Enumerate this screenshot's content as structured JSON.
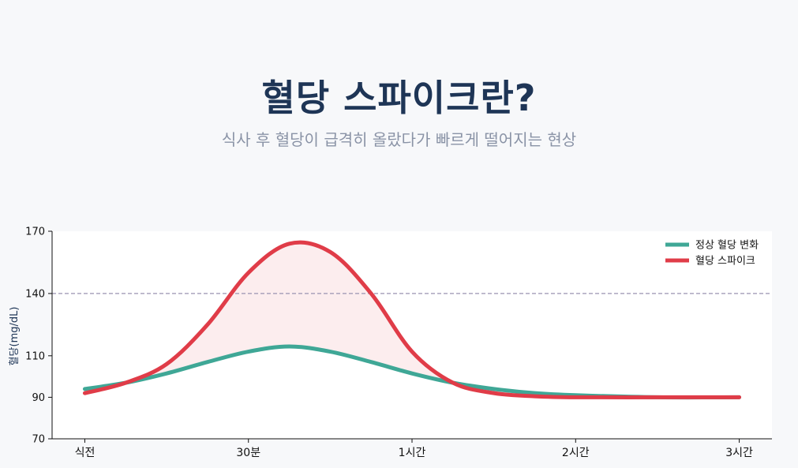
{
  "header": {
    "title": "혈당 스파이크란?",
    "subtitle": "식사 후 혈당이 급격히 올랐다가 빠르게 떨어지는 현상"
  },
  "chart_data": {
    "type": "line",
    "ylabel": "혈당(mg/dL)",
    "xlabel": "",
    "x": [
      0,
      0.25,
      0.5,
      0.75,
      1,
      1.25,
      1.5,
      1.75,
      2,
      2.25,
      2.5,
      2.75,
      3
    ],
    "x_tick_values": [
      0,
      1,
      2,
      3,
      4
    ],
    "x_tick_labels": [
      "식전",
      "30분",
      "1시간",
      "2시간",
      "3시간"
    ],
    "xlim": [
      -0.2,
      4.2
    ],
    "ylim": [
      70,
      170
    ],
    "y_ticks": [
      70,
      90,
      110,
      140,
      170
    ],
    "reference_line": {
      "y": 140,
      "color": "#9a94b0"
    },
    "grid": false,
    "legend_position": "top-right",
    "series": [
      {
        "name": "정상 혈당 변화",
        "color": "#3fa796",
        "points": [
          [
            0,
            94
          ],
          [
            0.25,
            97
          ],
          [
            0.5,
            101.5
          ],
          [
            0.75,
            107
          ],
          [
            1,
            112
          ],
          [
            1.25,
            114.5
          ],
          [
            1.5,
            112
          ],
          [
            1.75,
            107
          ],
          [
            2,
            101.5
          ],
          [
            2.25,
            97
          ],
          [
            2.5,
            94
          ],
          [
            2.75,
            92
          ],
          [
            3,
            91
          ],
          [
            3.5,
            90
          ],
          [
            4,
            90
          ]
        ]
      },
      {
        "name": "혈당 스파이크",
        "color": "#e03c48",
        "points": [
          [
            0,
            92
          ],
          [
            0.25,
            97
          ],
          [
            0.5,
            106
          ],
          [
            0.75,
            125
          ],
          [
            1,
            150
          ],
          [
            1.25,
            164
          ],
          [
            1.5,
            160
          ],
          [
            1.75,
            140
          ],
          [
            2,
            112
          ],
          [
            2.25,
            97
          ],
          [
            2.5,
            92
          ],
          [
            2.75,
            90.5
          ],
          [
            3,
            90
          ],
          [
            3.5,
            90
          ],
          [
            4,
            90
          ]
        ]
      }
    ],
    "fill_between": {
      "color": "#e03c48",
      "opacity": 0.09
    }
  }
}
